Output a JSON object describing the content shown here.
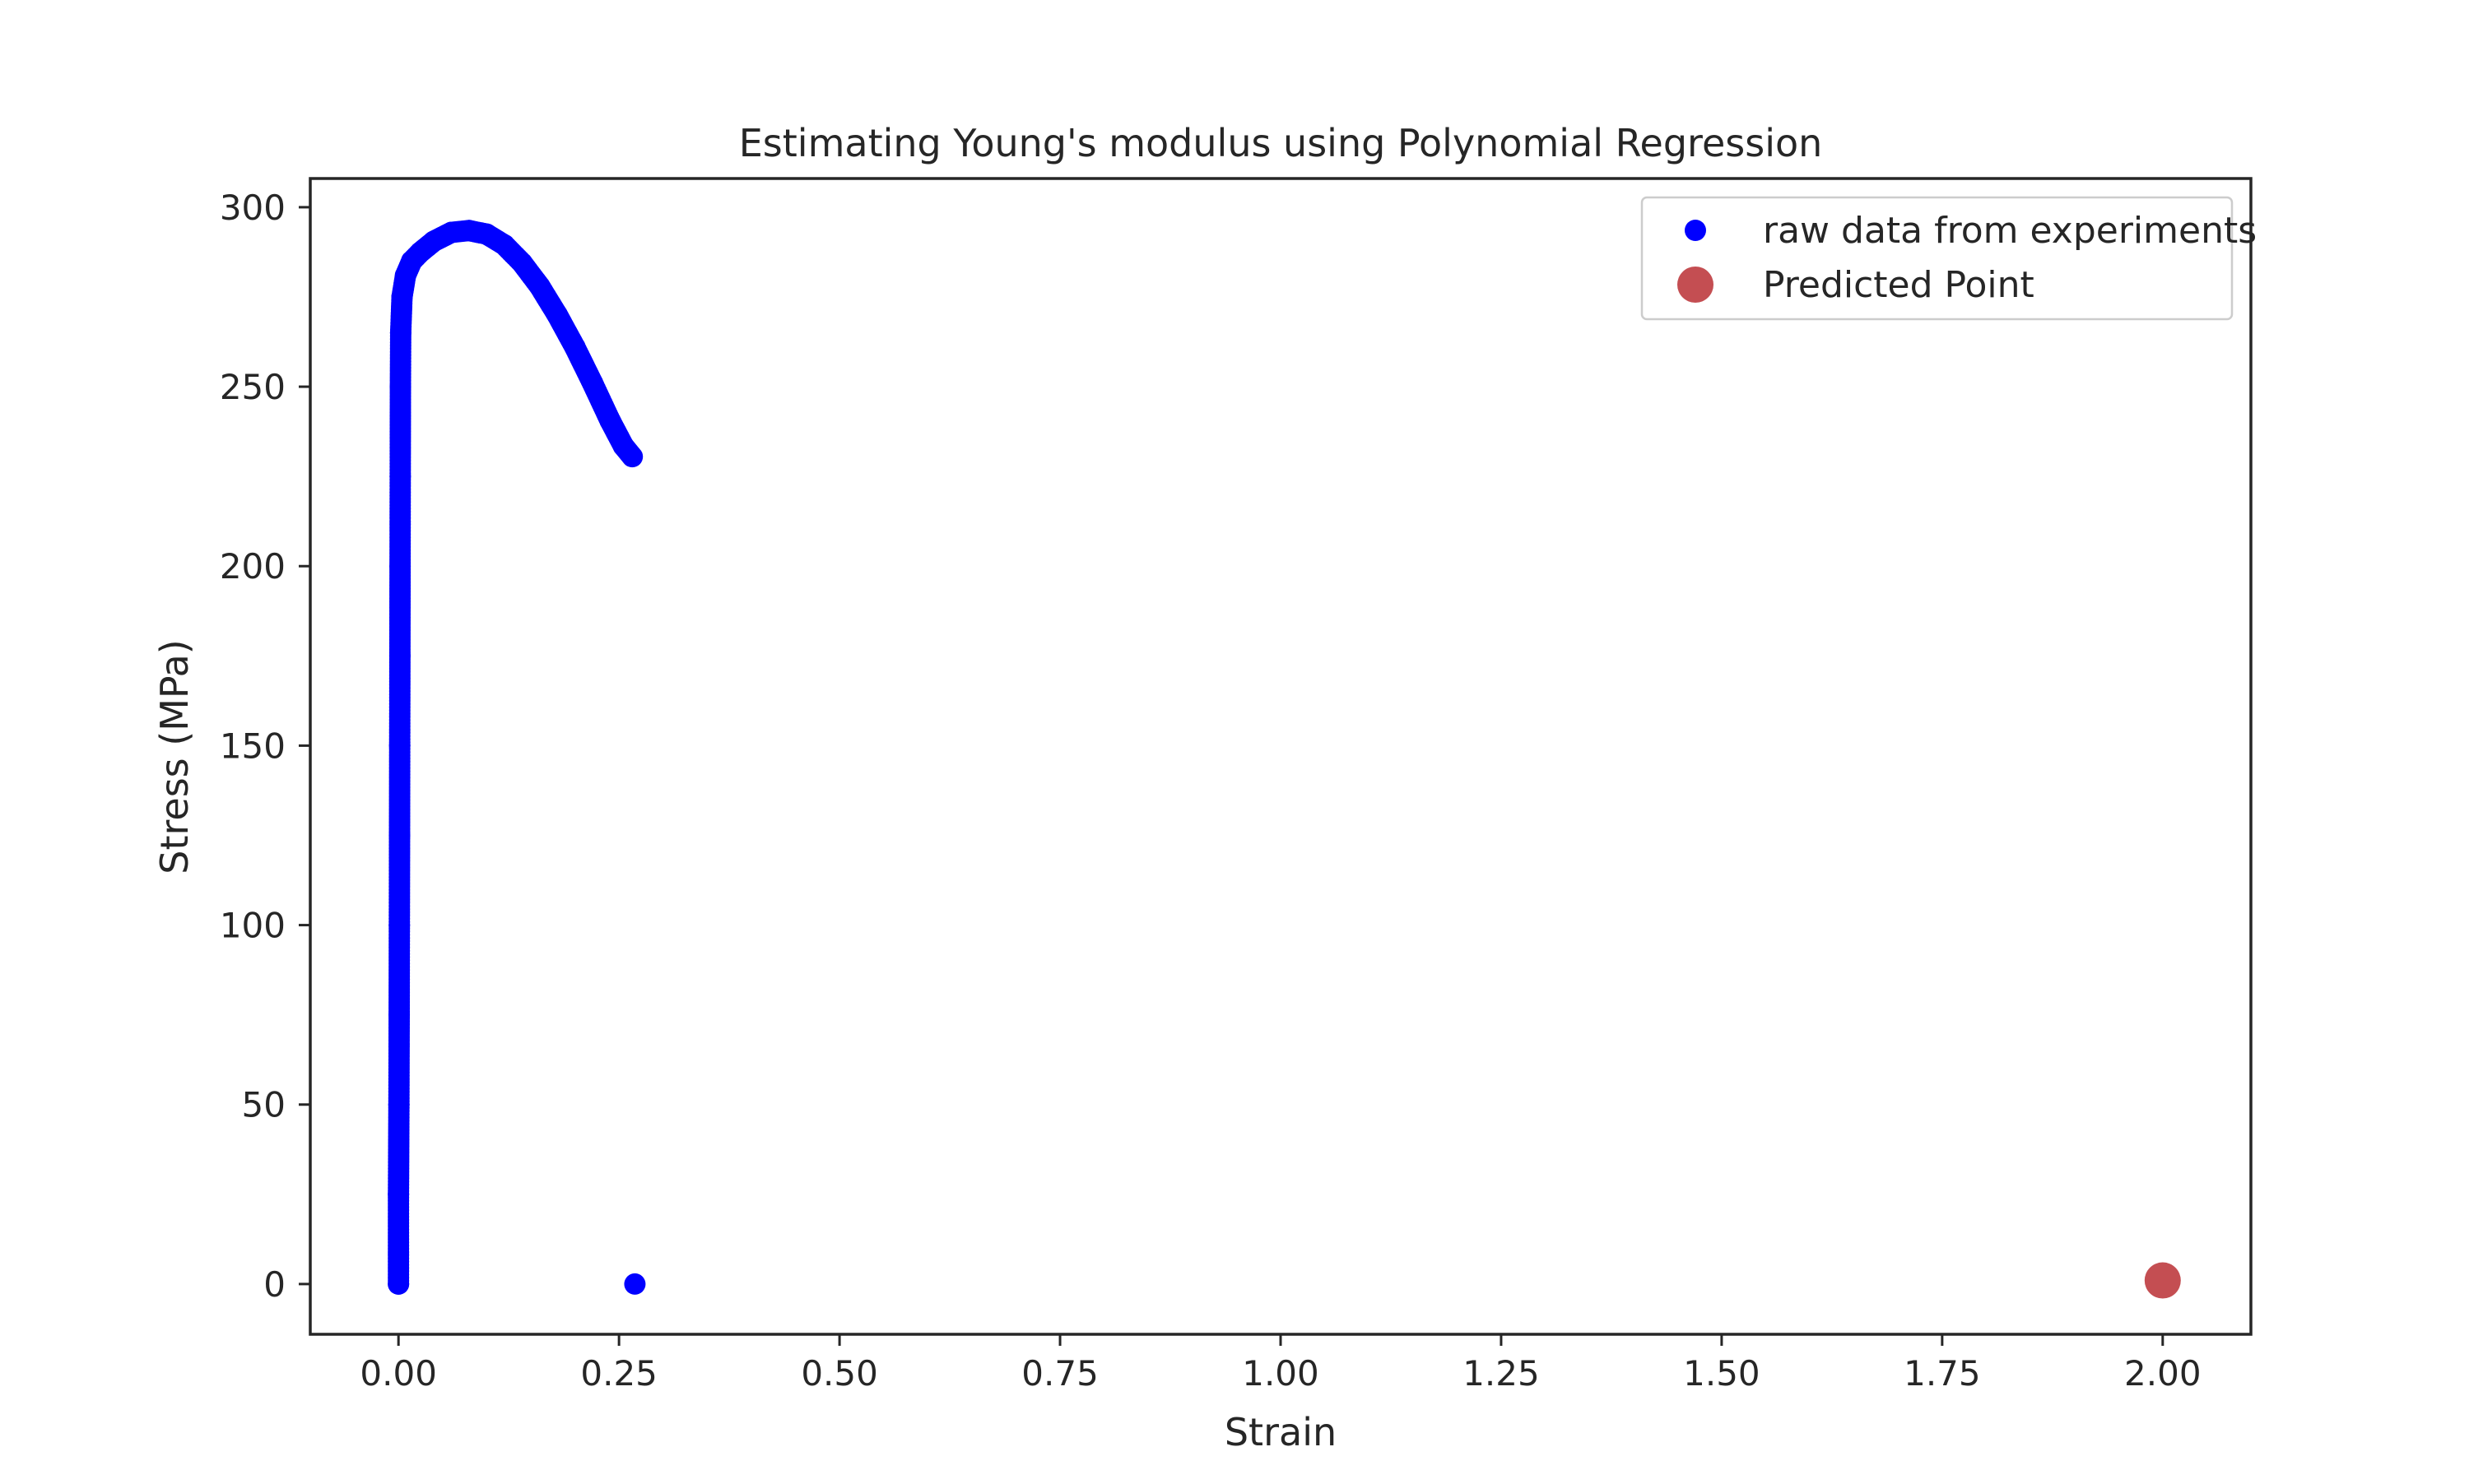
{
  "chart_data": {
    "type": "scatter",
    "title": "Estimating Young's modulus using Polynomial Regression",
    "xlabel": "Strain",
    "ylabel": "Stress (MPa)",
    "xlim": [
      -0.1,
      2.1
    ],
    "ylim": [
      -14,
      308
    ],
    "x_ticks": [
      0.0,
      0.25,
      0.5,
      0.75,
      1.0,
      1.25,
      1.5,
      1.75,
      2.0
    ],
    "x_tick_labels": [
      "0.00",
      "0.25",
      "0.50",
      "0.75",
      "1.00",
      "1.25",
      "1.50",
      "1.75",
      "2.00"
    ],
    "y_ticks": [
      0,
      50,
      100,
      150,
      200,
      250,
      300
    ],
    "y_tick_labels": [
      "0",
      "50",
      "100",
      "150",
      "200",
      "250",
      "300"
    ],
    "grid": false,
    "legend_position": "top-right",
    "series": [
      {
        "name": "raw data from experiments",
        "color": "#0000ff",
        "marker": "circle",
        "points": [
          [
            0.0,
            0
          ],
          [
            0.0,
            25
          ],
          [
            0.0005,
            50
          ],
          [
            0.0008,
            75
          ],
          [
            0.001,
            100
          ],
          [
            0.0012,
            125
          ],
          [
            0.0014,
            150
          ],
          [
            0.0016,
            175
          ],
          [
            0.0018,
            200
          ],
          [
            0.002,
            225
          ],
          [
            0.0022,
            250
          ],
          [
            0.0025,
            265
          ],
          [
            0.004,
            275
          ],
          [
            0.008,
            281
          ],
          [
            0.015,
            285
          ],
          [
            0.025,
            287.5
          ],
          [
            0.04,
            290.5
          ],
          [
            0.06,
            293
          ],
          [
            0.08,
            293.5
          ],
          [
            0.1,
            292.5
          ],
          [
            0.12,
            289.5
          ],
          [
            0.14,
            284.5
          ],
          [
            0.16,
            278
          ],
          [
            0.18,
            270
          ],
          [
            0.2,
            261
          ],
          [
            0.22,
            251
          ],
          [
            0.24,
            240.5
          ],
          [
            0.255,
            233.5
          ],
          [
            0.265,
            230.5
          ],
          [
            0.268,
            0
          ]
        ]
      },
      {
        "name": "Predicted Point",
        "color": "#c44e52",
        "marker": "circle",
        "points": [
          [
            2.0,
            1
          ]
        ]
      }
    ]
  }
}
